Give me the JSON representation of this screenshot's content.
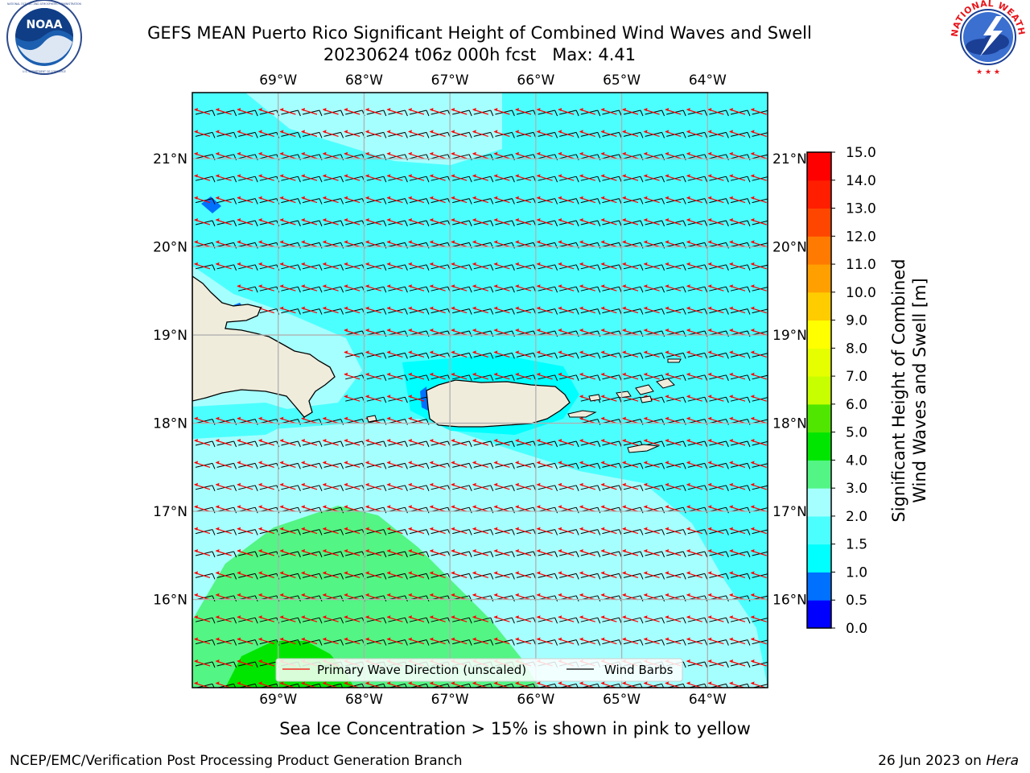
{
  "title": {
    "line1": "GEFS MEAN Puerto Rico Significant Height of Combined Wind Waves and Swell",
    "line2": "20230624 t06z 000h fcst   Max: 4.41"
  },
  "logos": {
    "noaa": {
      "text": "NOAA",
      "ring_top": "NATIONAL OCEANIC AND ATMOSPHERIC ADMINISTRATION",
      "ring_bottom": "U.S. DEPARTMENT OF COMMERCE"
    },
    "nws": {
      "ring_text": "NATIONAL WEATHER SERVICE"
    }
  },
  "map": {
    "lon_ticks": [
      "69°W",
      "68°W",
      "67°W",
      "66°W",
      "65°W",
      "64°W"
    ],
    "lat_ticks": [
      "21°N",
      "20°N",
      "19°N",
      "18°N",
      "17°N",
      "16°N"
    ],
    "lon_range": [
      -70.0,
      -63.3
    ],
    "lat_range": [
      15.0,
      21.75
    ],
    "colors": {
      "land": "#efecdc",
      "coast": "#000000",
      "grid": "#b0b0b0",
      "wave_arrow": "#ff0000",
      "barb": "#000000"
    }
  },
  "legend": {
    "wave": "Primary Wave Direction (unscaled)",
    "barbs": "Wind Barbs"
  },
  "colorbar": {
    "label_line1": "Significant Height of Combined",
    "label_line2": "Wind Waves and Swell [m]",
    "ticks": [
      "0.0",
      "0.5",
      "1.0",
      "1.5",
      "2.0",
      "3.0",
      "4.0",
      "5.0",
      "6.0",
      "7.0",
      "8.0",
      "9.0",
      "10.0",
      "11.0",
      "12.0",
      "13.0",
      "14.0",
      "15.0"
    ],
    "colors": [
      "#0000ff",
      "#0070ff",
      "#00ffff",
      "#4cffff",
      "#a6ffff",
      "#53f584",
      "#00e600",
      "#50e600",
      "#c8ff00",
      "#e6ff00",
      "#ffff00",
      "#ffcc00",
      "#ffa000",
      "#ff7a00",
      "#ff4600",
      "#ff1e00",
      "#ff0000"
    ]
  },
  "subtitle": "Sea Ice Concentration > 15% is shown in pink to yellow",
  "footer": {
    "left": "NCEP/EMC/Verification Post Processing Product Generation Branch",
    "right_prefix": "26 Jun 2023 on ",
    "right_host": "Hera"
  }
}
